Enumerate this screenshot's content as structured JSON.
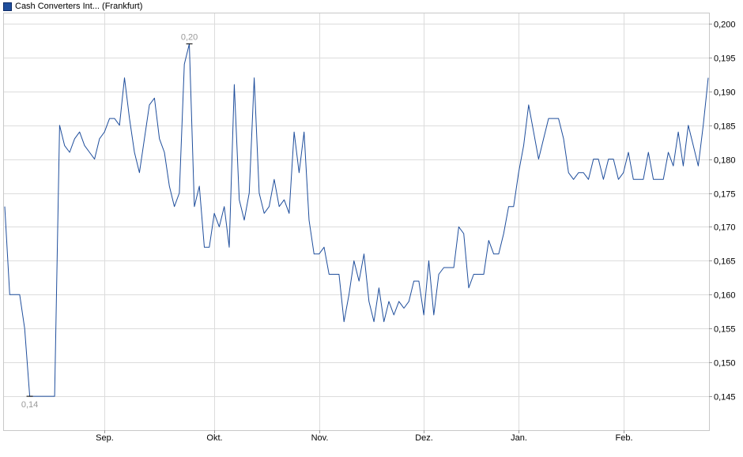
{
  "chart_data": {
    "type": "line",
    "legend": {
      "label": "Cash Converters Int... (Frankfurt)",
      "color": "#1f4e9c",
      "placement": "top-left"
    },
    "x_labels": [
      "Sep.",
      "Okt.",
      "Nov.",
      "Dez.",
      "Jan.",
      "Feb."
    ],
    "x_label_index": [
      20,
      42,
      63,
      84,
      103,
      124
    ],
    "y_ticks": [
      "0,145",
      "0,150",
      "0,155",
      "0,160",
      "0,165",
      "0,170",
      "0,175",
      "0,180",
      "0,185",
      "0,190",
      "0,195",
      "0,200"
    ],
    "y_tick_values": [
      0.145,
      0.15,
      0.155,
      0.16,
      0.165,
      0.17,
      0.175,
      0.18,
      0.185,
      0.19,
      0.195,
      0.2
    ],
    "ylim": [
      0.14,
      0.2015
    ],
    "grid": true,
    "line_color": "#1f4e9c",
    "series": [
      {
        "values": [
          0.173,
          0.16,
          0.16,
          0.16,
          0.155,
          0.145,
          0.145,
          0.145,
          0.145,
          0.145,
          0.145,
          0.185,
          0.182,
          0.181,
          0.183,
          0.184,
          0.182,
          0.181,
          0.18,
          0.183,
          0.184,
          0.186,
          0.186,
          0.185,
          0.192,
          0.186,
          0.181,
          0.178,
          0.183,
          0.188,
          0.189,
          0.183,
          0.181,
          0.176,
          0.173,
          0.175,
          0.194,
          0.197,
          0.173,
          0.176,
          0.167,
          0.167,
          0.172,
          0.17,
          0.173,
          0.167,
          0.191,
          0.174,
          0.171,
          0.175,
          0.192,
          0.175,
          0.172,
          0.173,
          0.177,
          0.173,
          0.174,
          0.172,
          0.184,
          0.178,
          0.184,
          0.171,
          0.166,
          0.166,
          0.167,
          0.163,
          0.163,
          0.163,
          0.156,
          0.16,
          0.165,
          0.162,
          0.166,
          0.159,
          0.156,
          0.161,
          0.156,
          0.159,
          0.157,
          0.159,
          0.158,
          0.159,
          0.162,
          0.162,
          0.157,
          0.165,
          0.157,
          0.163,
          0.164,
          0.164,
          0.164,
          0.17,
          0.169,
          0.161,
          0.163,
          0.163,
          0.163,
          0.168,
          0.166,
          0.166,
          0.169,
          0.173,
          0.173,
          0.178,
          0.182,
          0.188,
          0.184,
          0.18,
          0.183,
          0.186,
          0.186,
          0.186,
          0.183,
          0.178,
          0.177,
          0.178,
          0.178,
          0.177,
          0.18,
          0.18,
          0.177,
          0.18,
          0.18,
          0.177,
          0.178,
          0.181,
          0.177,
          0.177,
          0.177,
          0.181,
          0.177,
          0.177,
          0.177,
          0.181,
          0.179,
          0.184,
          0.179,
          0.185,
          0.182,
          0.179,
          0.185,
          0.192
        ]
      }
    ],
    "annotations": [
      {
        "label": "0,20",
        "index": 37,
        "value": 0.197,
        "position": "above"
      },
      {
        "label": "0,14",
        "index": 5,
        "value": 0.145,
        "position": "below"
      }
    ]
  }
}
